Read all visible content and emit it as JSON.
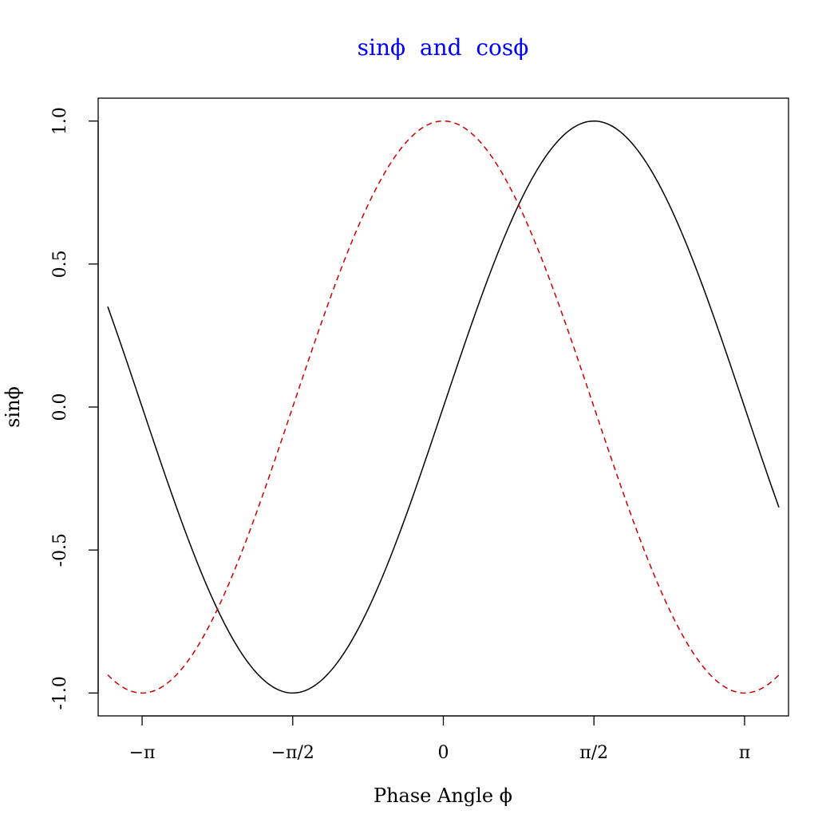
{
  "chart_data": {
    "type": "line",
    "title": "sinϕ  and  cosϕ",
    "title_color": "#0000ff",
    "xlabel": "Phase Angle ϕ",
    "ylabel": "sinϕ",
    "xlim": [
      -3.6,
      3.6
    ],
    "ylim": [
      -1.08,
      1.08
    ],
    "x_range": [
      -3.5,
      3.5
    ],
    "x_ticks": [
      {
        "value": -3.14159,
        "label": "−π"
      },
      {
        "value": -1.5708,
        "label": "−π/2"
      },
      {
        "value": 0,
        "label": "0"
      },
      {
        "value": 1.5708,
        "label": "π/2"
      },
      {
        "value": 3.14159,
        "label": "π"
      }
    ],
    "y_ticks": [
      {
        "value": -1.0,
        "label": "-1.0"
      },
      {
        "value": -0.5,
        "label": "-0.5"
      },
      {
        "value": 0.0,
        "label": "0.0"
      },
      {
        "value": 0.5,
        "label": "0.5"
      },
      {
        "value": 1.0,
        "label": "1.0"
      }
    ],
    "series": [
      {
        "function": "sin",
        "color": "#000000",
        "style": "solid"
      },
      {
        "function": "cos",
        "color": "#cc0000",
        "style": "dashed"
      }
    ],
    "grid": false,
    "legend": "none"
  }
}
